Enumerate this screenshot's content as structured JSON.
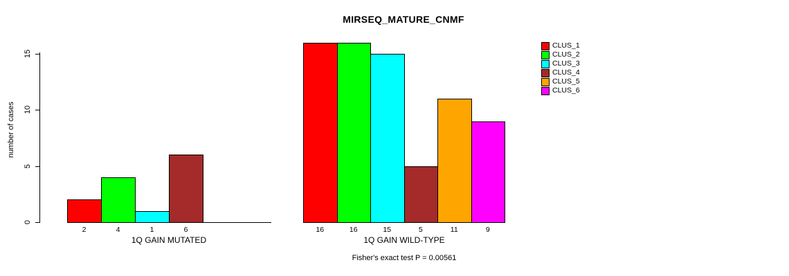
{
  "chart_data": {
    "type": "bar",
    "title": "MIRSEQ_MATURE_CNMF",
    "ylabel": "number of cases",
    "yticks": [
      0,
      5,
      10,
      15
    ],
    "ylim": [
      0,
      16.5
    ],
    "grid": false,
    "legend_position": "right-outside",
    "legend": {
      "entries": [
        {
          "label": "CLUS_1",
          "color": "#FF0000"
        },
        {
          "label": "CLUS_2",
          "color": "#00FF00"
        },
        {
          "label": "CLUS_3",
          "color": "#00FFFF"
        },
        {
          "label": "CLUS_4",
          "color": "#A52A2A"
        },
        {
          "label": "CLUS_5",
          "color": "#FFA500"
        },
        {
          "label": "CLUS_6",
          "color": "#FF00FF"
        }
      ]
    },
    "groups": [
      {
        "xlabel": "1Q GAIN MUTATED",
        "bars": [
          {
            "cluster": "CLUS_1",
            "value": 2,
            "label": "2",
            "color": "#FF0000"
          },
          {
            "cluster": "CLUS_2",
            "value": 4,
            "label": "4",
            "color": "#00FF00"
          },
          {
            "cluster": "CLUS_3",
            "value": 1,
            "label": "1",
            "color": "#00FFFF"
          },
          {
            "cluster": "CLUS_4",
            "value": 6,
            "label": "6",
            "color": "#A52A2A"
          },
          {
            "cluster": "CLUS_5",
            "value": 0,
            "label": "",
            "color": "#FFA500"
          },
          {
            "cluster": "CLUS_6",
            "value": 0,
            "label": "",
            "color": "#FF00FF"
          }
        ]
      },
      {
        "xlabel": "1Q GAIN WILD-TYPE",
        "bars": [
          {
            "cluster": "CLUS_1",
            "value": 16,
            "label": "16",
            "color": "#FF0000"
          },
          {
            "cluster": "CLUS_2",
            "value": 16,
            "label": "16",
            "color": "#00FF00"
          },
          {
            "cluster": "CLUS_3",
            "value": 15,
            "label": "15",
            "color": "#00FFFF"
          },
          {
            "cluster": "CLUS_4",
            "value": 5,
            "label": "5",
            "color": "#A52A2A"
          },
          {
            "cluster": "CLUS_5",
            "value": 11,
            "label": "11",
            "color": "#FFA500"
          },
          {
            "cluster": "CLUS_6",
            "value": 9,
            "label": "9",
            "color": "#FF00FF"
          }
        ]
      }
    ],
    "footnote": "Fisher's exact test P = 0.00561"
  }
}
